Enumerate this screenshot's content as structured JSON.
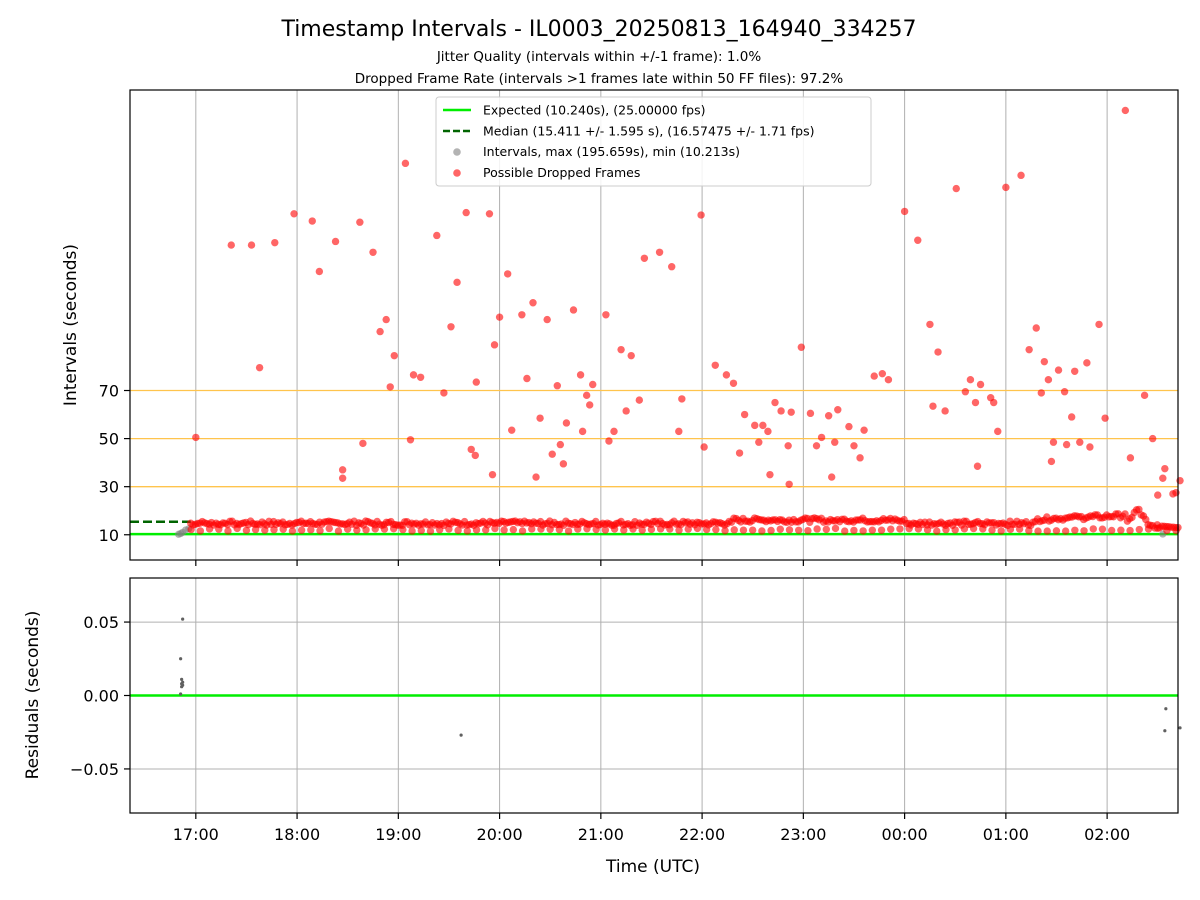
{
  "chart_data": [
    {
      "type": "scatter",
      "title": "Timestamp Intervals - IL0003_20250813_164940_334257",
      "subtitle_lines": [
        "Jitter Quality (intervals within +/-1 frame): 1.0%",
        "Dropped Frame Rate (intervals >1 frames late within 50 FF files): 97.2%"
      ],
      "ylabel": "Intervals (seconds)",
      "ylim": [
        -0.5,
        195
      ],
      "yticks": [
        10,
        30,
        50,
        70
      ],
      "ytick_labels": [
        "10",
        "30",
        "50",
        "70"
      ],
      "reference_lines_y": [
        30,
        50,
        70
      ],
      "expected_line": 10.24,
      "median_line": 15.411,
      "median_line_x_end": 16.95,
      "grid": "vertical",
      "legend_position": "top-center",
      "legend": [
        {
          "label": "Expected (10.240s), (25.00000 fps)",
          "style": "line",
          "color": "#00ee00"
        },
        {
          "label": "Median (15.411 +/- 1.595 s), (16.57475 +/- 1.71 fps)",
          "style": "dashed",
          "color": "#006400"
        },
        {
          "label": "Intervals, max (195.659s), min (10.213s)",
          "style": "dot",
          "color": "#808080"
        },
        {
          "label": "Possible Dropped Frames",
          "style": "dot",
          "color": "#ff0000"
        }
      ],
      "series": [
        {
          "name": "Intervals, max (195.659s), min (10.213s)",
          "color": "#808080",
          "points": [
            [
              16.83,
              10.2
            ],
            [
              16.85,
              10.5
            ],
            [
              16.87,
              11.0
            ],
            [
              16.9,
              12.0
            ],
            [
              16.93,
              12.5
            ],
            [
              26.55,
              10.3
            ]
          ]
        },
        {
          "name": "Possible Dropped Frames",
          "color": "#ff0000",
          "band": {
            "x_start": 16.95,
            "x_end": 26.7,
            "base_y": 14.8,
            "count": 430
          },
          "points": [
            [
              17.0,
              50.5
            ],
            [
              17.35,
              130.5
            ],
            [
              17.55,
              130.5
            ],
            [
              17.63,
              79.5
            ],
            [
              17.78,
              131.5
            ],
            [
              17.97,
              143.5
            ],
            [
              18.15,
              140.5
            ],
            [
              18.22,
              119.5
            ],
            [
              18.38,
              132
            ],
            [
              18.45,
              37
            ],
            [
              18.45,
              33.5
            ],
            [
              18.62,
              140
            ],
            [
              18.65,
              48
            ],
            [
              18.75,
              127.5
            ],
            [
              18.82,
              94.5
            ],
            [
              18.88,
              99.5
            ],
            [
              18.92,
              71.5
            ],
            [
              18.96,
              84.5
            ],
            [
              19.07,
              164.5
            ],
            [
              19.12,
              49.5
            ],
            [
              19.15,
              76.5
            ],
            [
              19.22,
              75.5
            ],
            [
              19.38,
              134.5
            ],
            [
              19.45,
              69
            ],
            [
              19.52,
              96.5
            ],
            [
              19.58,
              115
            ],
            [
              19.67,
              144
            ],
            [
              19.72,
              45.5
            ],
            [
              19.76,
              43
            ],
            [
              19.77,
              73.5
            ],
            [
              19.9,
              143.5
            ],
            [
              19.93,
              35
            ],
            [
              19.95,
              89
            ],
            [
              20.0,
              100.5
            ],
            [
              20.08,
              118.5
            ],
            [
              20.12,
              53.5
            ],
            [
              20.22,
              101.5
            ],
            [
              20.27,
              75
            ],
            [
              20.33,
              106.5
            ],
            [
              20.36,
              34
            ],
            [
              20.4,
              58.5
            ],
            [
              20.47,
              99.5
            ],
            [
              20.52,
              43.5
            ],
            [
              20.57,
              72
            ],
            [
              20.6,
              47.5
            ],
            [
              20.63,
              39.5
            ],
            [
              20.66,
              56.5
            ],
            [
              20.73,
              103.5
            ],
            [
              20.8,
              76.5
            ],
            [
              20.82,
              53
            ],
            [
              20.86,
              68
            ],
            [
              20.89,
              64
            ],
            [
              20.92,
              72.5
            ],
            [
              21.05,
              101.5
            ],
            [
              21.08,
              49
            ],
            [
              21.13,
              53
            ],
            [
              21.2,
              87
            ],
            [
              21.25,
              61.5
            ],
            [
              21.3,
              84.5
            ],
            [
              21.38,
              66
            ],
            [
              21.43,
              125
            ],
            [
              21.58,
              127.5
            ],
            [
              21.7,
              121.5
            ],
            [
              21.77,
              53
            ],
            [
              21.8,
              66.5
            ],
            [
              21.99,
              143
            ],
            [
              22.02,
              46.5
            ],
            [
              22.13,
              80.5
            ],
            [
              22.24,
              76.5
            ],
            [
              22.31,
              73
            ],
            [
              22.37,
              44
            ],
            [
              22.42,
              60
            ],
            [
              22.52,
              55.5
            ],
            [
              22.56,
              48.5
            ],
            [
              22.6,
              55.5
            ],
            [
              22.65,
              53
            ],
            [
              22.67,
              35
            ],
            [
              22.72,
              65
            ],
            [
              22.78,
              61.5
            ],
            [
              22.85,
              47
            ],
            [
              22.86,
              31
            ],
            [
              22.88,
              61
            ],
            [
              22.98,
              88
            ],
            [
              23.07,
              60.5
            ],
            [
              23.13,
              47
            ],
            [
              23.18,
              50.5
            ],
            [
              23.25,
              59.5
            ],
            [
              23.28,
              34
            ],
            [
              23.31,
              48.5
            ],
            [
              23.34,
              62
            ],
            [
              23.45,
              55
            ],
            [
              23.5,
              47
            ],
            [
              23.56,
              42
            ],
            [
              23.6,
              53.5
            ],
            [
              23.7,
              76
            ],
            [
              23.78,
              77
            ],
            [
              23.84,
              74.5
            ],
            [
              24.0,
              144.5
            ],
            [
              24.13,
              132.5
            ],
            [
              24.25,
              97.5
            ],
            [
              24.28,
              63.5
            ],
            [
              24.33,
              86
            ],
            [
              24.4,
              61.5
            ],
            [
              24.51,
              154
            ],
            [
              24.6,
              69.5
            ],
            [
              24.65,
              74.5
            ],
            [
              24.7,
              65
            ],
            [
              24.72,
              38.5
            ],
            [
              24.75,
              72.5
            ],
            [
              24.85,
              67
            ],
            [
              24.88,
              65
            ],
            [
              24.92,
              53
            ],
            [
              25.0,
              154.5
            ],
            [
              25.15,
              159.5
            ],
            [
              25.23,
              87
            ],
            [
              25.3,
              96
            ],
            [
              25.35,
              69
            ],
            [
              25.38,
              82
            ],
            [
              25.42,
              74.5
            ],
            [
              25.45,
              40.5
            ],
            [
              25.47,
              48.5
            ],
            [
              25.52,
              78.5
            ],
            [
              25.58,
              69.5
            ],
            [
              25.6,
              47.5
            ],
            [
              25.65,
              59
            ],
            [
              25.68,
              78
            ],
            [
              25.73,
              48.5
            ],
            [
              25.8,
              81.5
            ],
            [
              25.83,
              46.5
            ],
            [
              25.92,
              97.5
            ],
            [
              25.98,
              58.5
            ],
            [
              26.18,
              186.5
            ],
            [
              26.23,
              42
            ],
            [
              26.37,
              68
            ],
            [
              26.45,
              50
            ],
            [
              26.5,
              26.5
            ],
            [
              26.55,
              33.5
            ],
            [
              26.57,
              37.5
            ],
            [
              26.65,
              27
            ],
            [
              26.68,
              27.5
            ],
            [
              26.72,
              32.5
            ]
          ]
        }
      ]
    },
    {
      "type": "scatter",
      "xlabel": "Time (UTC)",
      "ylabel": "Residuals (seconds)",
      "ylim": [
        -0.08,
        0.08
      ],
      "yticks": [
        -0.05,
        0.0,
        0.05
      ],
      "ytick_labels": [
        "−0.05",
        "0.00",
        "0.05"
      ],
      "zero_line_color": "#00ee00",
      "grid": "both",
      "series": [
        {
          "color": "#808080",
          "points": [
            [
              16.87,
              0.052
            ],
            [
              16.85,
              0.025
            ],
            [
              16.86,
              0.011
            ],
            [
              16.87,
              0.009
            ],
            [
              16.86,
              0.008
            ],
            [
              16.87,
              0.007
            ],
            [
              16.86,
              0.006
            ],
            [
              16.85,
              0.001
            ],
            [
              19.62,
              -0.027
            ],
            [
              26.58,
              -0.009
            ],
            [
              26.57,
              -0.024
            ],
            [
              26.72,
              -0.022
            ]
          ]
        }
      ]
    }
  ],
  "x_axis": {
    "range": [
      16.35,
      26.7
    ],
    "ticks": [
      17,
      18,
      19,
      20,
      21,
      22,
      23,
      24,
      25,
      26
    ],
    "tick_labels": [
      "17:00",
      "18:00",
      "19:00",
      "20:00",
      "21:00",
      "22:00",
      "23:00",
      "00:00",
      "01:00",
      "02:00"
    ],
    "label": "Time (UTC)"
  },
  "colors": {
    "dropped": "#ff0000",
    "intervals": "#808080",
    "expected": "#00ee00",
    "median": "#006400",
    "reference_lines": "#ffc44d",
    "grid": "#b0b0b0"
  }
}
